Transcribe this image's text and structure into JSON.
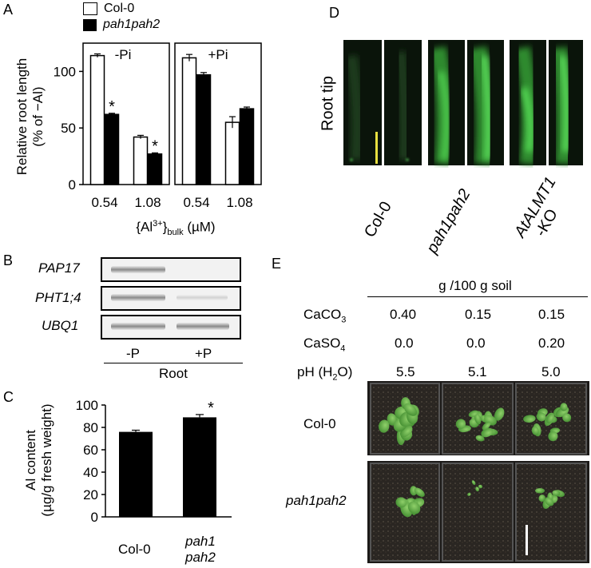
{
  "panelA": {
    "letter": "A",
    "legend": [
      {
        "label": "Col-0",
        "fill": "#ffffff"
      },
      {
        "label": "pah1pah2",
        "fill": "#000000"
      }
    ],
    "ylabel_line1": "Relative root length",
    "ylabel_line2": "(% of −Al)",
    "xlabel_prefix": "{Al",
    "xlabel_sup": "3+",
    "xlabel_mid": "}",
    "xlabel_sub": "bulk",
    "xlabel_suffix": " (µM)",
    "asterisk": "*"
  },
  "chart_data": [
    {
      "type": "bar",
      "title": "-Pi",
      "categories": [
        "0.54",
        "1.08"
      ],
      "series": [
        {
          "name": "Col-0",
          "values": [
            114,
            42
          ],
          "err": [
            1.5,
            1.5
          ]
        },
        {
          "name": "pah1pah2",
          "values": [
            62,
            27
          ],
          "err": [
            1,
            1
          ]
        }
      ],
      "significant": [
        [
          false,
          false
        ],
        [
          true,
          true
        ]
      ],
      "ylim": [
        0,
        125
      ],
      "yticks": [
        "0",
        "50",
        "100"
      ],
      "ylabel": "Relative root length (% of −Al)"
    },
    {
      "type": "bar",
      "title": "+Pi",
      "categories": [
        "0.54",
        "1.08"
      ],
      "series": [
        {
          "name": "Col-0",
          "values": [
            112,
            55
          ],
          "err": [
            3,
            5
          ]
        },
        {
          "name": "pah1pah2",
          "values": [
            97,
            67
          ],
          "err": [
            2,
            1.5
          ]
        }
      ],
      "significant": [
        [
          false,
          false
        ],
        [
          false,
          false
        ]
      ],
      "ylim": [
        0,
        125
      ]
    },
    {
      "type": "bar",
      "categories": [
        "Col-0",
        "pah1 pah2"
      ],
      "series": [
        {
          "values": [
            76,
            89
          ],
          "err": [
            1.5,
            2.5
          ]
        }
      ],
      "significant": [
        [
          false,
          true
        ]
      ],
      "ylim": [
        0,
        100
      ],
      "yticks": [
        "0",
        "20",
        "40",
        "60",
        "80",
        "100"
      ],
      "ylabel": "Al content (µg/g fresh weight)"
    }
  ],
  "panelB": {
    "letter": "B",
    "genes": [
      "PAP17",
      "PHT1;4",
      "UBQ1"
    ],
    "conditions": [
      "-P",
      "+P"
    ],
    "group_label": "Root"
  },
  "panelC": {
    "letter": "C",
    "ylabel_line1": "Al content",
    "ylabel_line2": "(µg/g fresh weight)",
    "x_labels": [
      {
        "lines": [
          "Col-0"
        ],
        "italic": false
      },
      {
        "lines": [
          "pah1",
          "pah2"
        ],
        "italic": true
      }
    ],
    "asterisk": "*"
  },
  "panelD": {
    "letter": "D",
    "side_label": "Root tip",
    "genotypes": [
      "Col-0",
      "pah1pah2",
      "AtALMT1\n-KO"
    ],
    "scale_bar_color": "#e8e040"
  },
  "panelE": {
    "letter": "E",
    "header": "g /100 g soil",
    "rows": [
      {
        "label_main": "CaCO",
        "label_sub": "3",
        "label_end": "",
        "values": [
          "0.40",
          "0.15",
          "0.15"
        ]
      },
      {
        "label_main": "CaSO",
        "label_sub": "4",
        "label_end": "",
        "values": [
          "0.0",
          "0.0",
          "0.20"
        ]
      },
      {
        "label_main": "pH (H",
        "label_sub": "2",
        "label_end": "O)",
        "values": [
          "5.5",
          "5.1",
          "5.0"
        ]
      }
    ],
    "genotypes": [
      "Col-0",
      "pah1pah2"
    ]
  }
}
